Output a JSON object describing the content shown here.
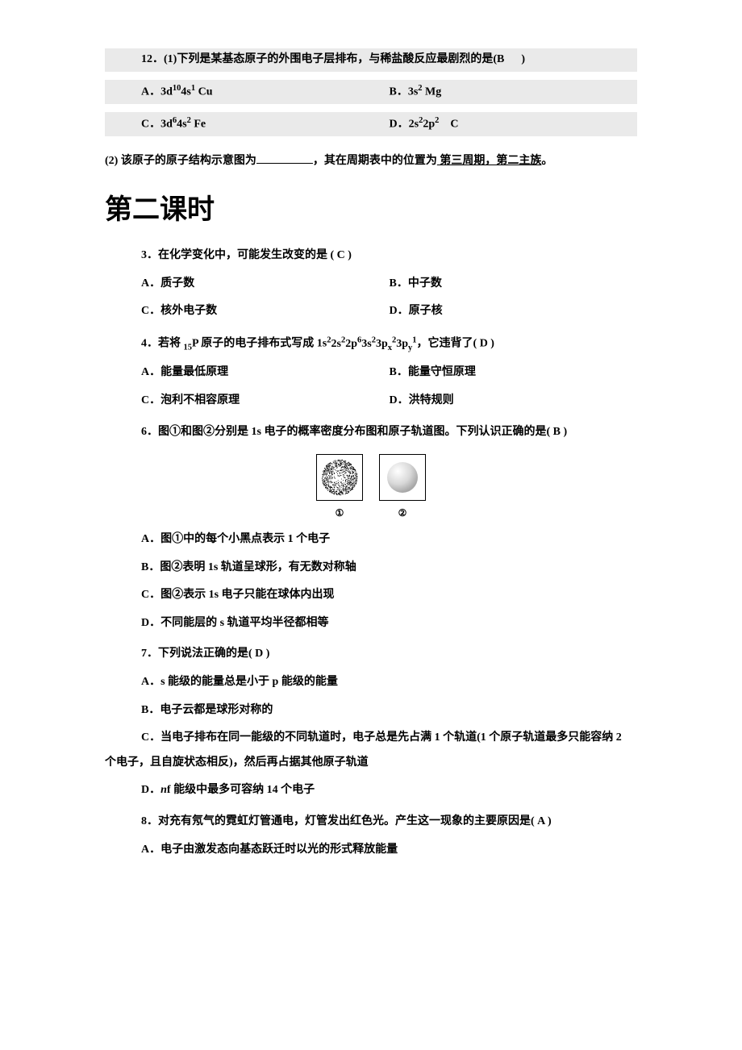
{
  "q12": {
    "stem_pre": "12．(1)下列是某基态原子的外围电子层排布，与稀盐酸反应最剧烈的是(B",
    "stem_post": ")",
    "A_pre": "A．3d",
    "A_sup1": "10",
    "A_mid": "4s",
    "A_sup2": "1",
    "A_tail": " Cu",
    "B_pre": "B．3s",
    "B_sup": "2",
    "B_tail": " Mg",
    "C_pre": "C．3d",
    "C_sup1": "6",
    "C_mid": "4s",
    "C_sup2": "2",
    "C_tail": " Fe",
    "D_pre": "D．2s",
    "D_sup1": "2",
    "D_mid": "2p",
    "D_sup2": "2",
    "D_tail": "    C",
    "part2_pre": "(2) 该原子的原子结构示意图为",
    "part2_mid": "，其在周期表中的位置为",
    "part2_ans": " 第三周期，第二主族",
    "part2_end": "。"
  },
  "section_title": "第二课时",
  "q3": {
    "stem": "3．在化学变化中，可能发生改变的是    (    C    )",
    "A": "A．质子数",
    "B": "B．中子数",
    "C": "C．核外电子数",
    "D": "D．原子核"
  },
  "q4": {
    "stem_pre": "4．若将 ",
    "sub15": "15",
    "P": "P 原子的电子排布式写成 1s",
    "seq": [
      {
        "t": "sup",
        "v": "2"
      },
      {
        "t": "n",
        "v": "2s"
      },
      {
        "t": "sup",
        "v": "2"
      },
      {
        "t": "n",
        "v": "2p"
      },
      {
        "t": "sup",
        "v": "6"
      },
      {
        "t": "n",
        "v": "3s"
      },
      {
        "t": "sup",
        "v": "2"
      },
      {
        "t": "n",
        "v": "3p"
      },
      {
        "t": "sub",
        "v": "x"
      },
      {
        "t": "sup",
        "v": "2"
      },
      {
        "t": "n",
        "v": "3p"
      },
      {
        "t": "sub",
        "v": "y"
      },
      {
        "t": "sup",
        "v": "1"
      }
    ],
    "stem_post": "，它违背了(    D    )",
    "A": "A．能量最低原理",
    "B": "B．能量守恒原理",
    "C": "C．泡利不相容原理",
    "D": "D．洪特规则"
  },
  "q6": {
    "stem": "6．图①和图②分别是 1s 电子的概率密度分布图和原子轨道图。下列认识正确的是(    B    )",
    "fig1_label": "①",
    "fig2_label": "②",
    "A": "A．图①中的每个小黑点表示 1 个电子",
    "B": "B．图②表明 1s 轨道呈球形，有无数对称轴",
    "C": "C．图②表示 1s 电子只能在球体内出现",
    "D": "D．不同能层的 s 轨道平均半径都相等"
  },
  "q7": {
    "stem": "7．下列说法正确的是(    D    )",
    "A": "A．s 能级的能量总是小于 p 能级的能量",
    "B": "B．电子云都是球形对称的",
    "C1": "C．当电子排布在同一能级的不同轨道时，电子总是先占满 1 个轨道(1 个原子轨道最多只能容纳 2",
    "C2": "个电子，且自旋状态相反)，然后再占据其他原子轨道",
    "D_pre": "D．",
    "D_n": "n",
    "D_post": "f 能级中最多可容纳 14 个电子"
  },
  "q8": {
    "stem": "8．对充有氖气的霓虹灯管通电，灯管发出红色光。产生这一现象的主要原因是(    A    )",
    "A": "A．电子由激发态向基态跃迁时以光的形式释放能量"
  },
  "fig_colors": {
    "density_dot": "#000000",
    "orbital_light": "#d9d9d9",
    "orbital_shadow": "#a8a8a8"
  }
}
